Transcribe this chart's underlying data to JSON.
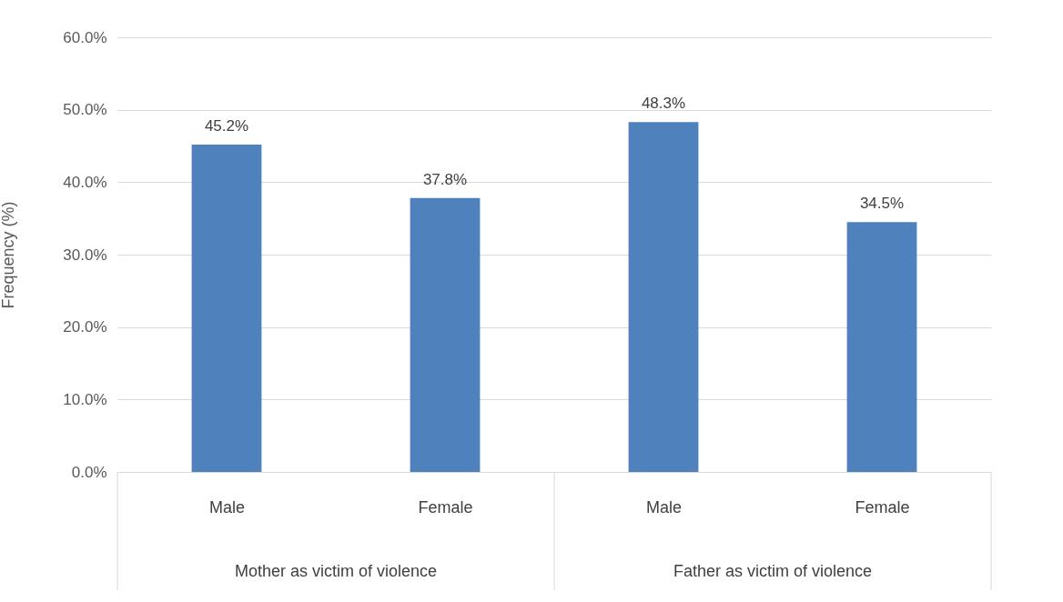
{
  "chart_data": {
    "type": "bar",
    "ylabel": "Frequency (%)",
    "categories": [
      "Male",
      "Female",
      "Male",
      "Female"
    ],
    "values": [
      45.2,
      37.8,
      48.3,
      34.5
    ],
    "color": "#4f81bd",
    "value_labels": [
      "45.2%",
      "37.8%",
      "48.3%",
      "34.5%"
    ],
    "annotations": [
      "Mother as victim of violence",
      "Father as victim of violence"
    ],
    "ylim": [
      0,
      60
    ],
    "yticks": [
      {
        "value": 0,
        "label": "0.0%"
      },
      {
        "value": 10,
        "label": "10.0%"
      },
      {
        "value": 20,
        "label": "20.0%"
      },
      {
        "value": 30,
        "label": "30.0%"
      },
      {
        "value": 40,
        "label": "40.0%"
      },
      {
        "value": 50,
        "label": "50.0%"
      },
      {
        "value": 60,
        "label": "60.0%"
      }
    ],
    "grid": "y"
  }
}
